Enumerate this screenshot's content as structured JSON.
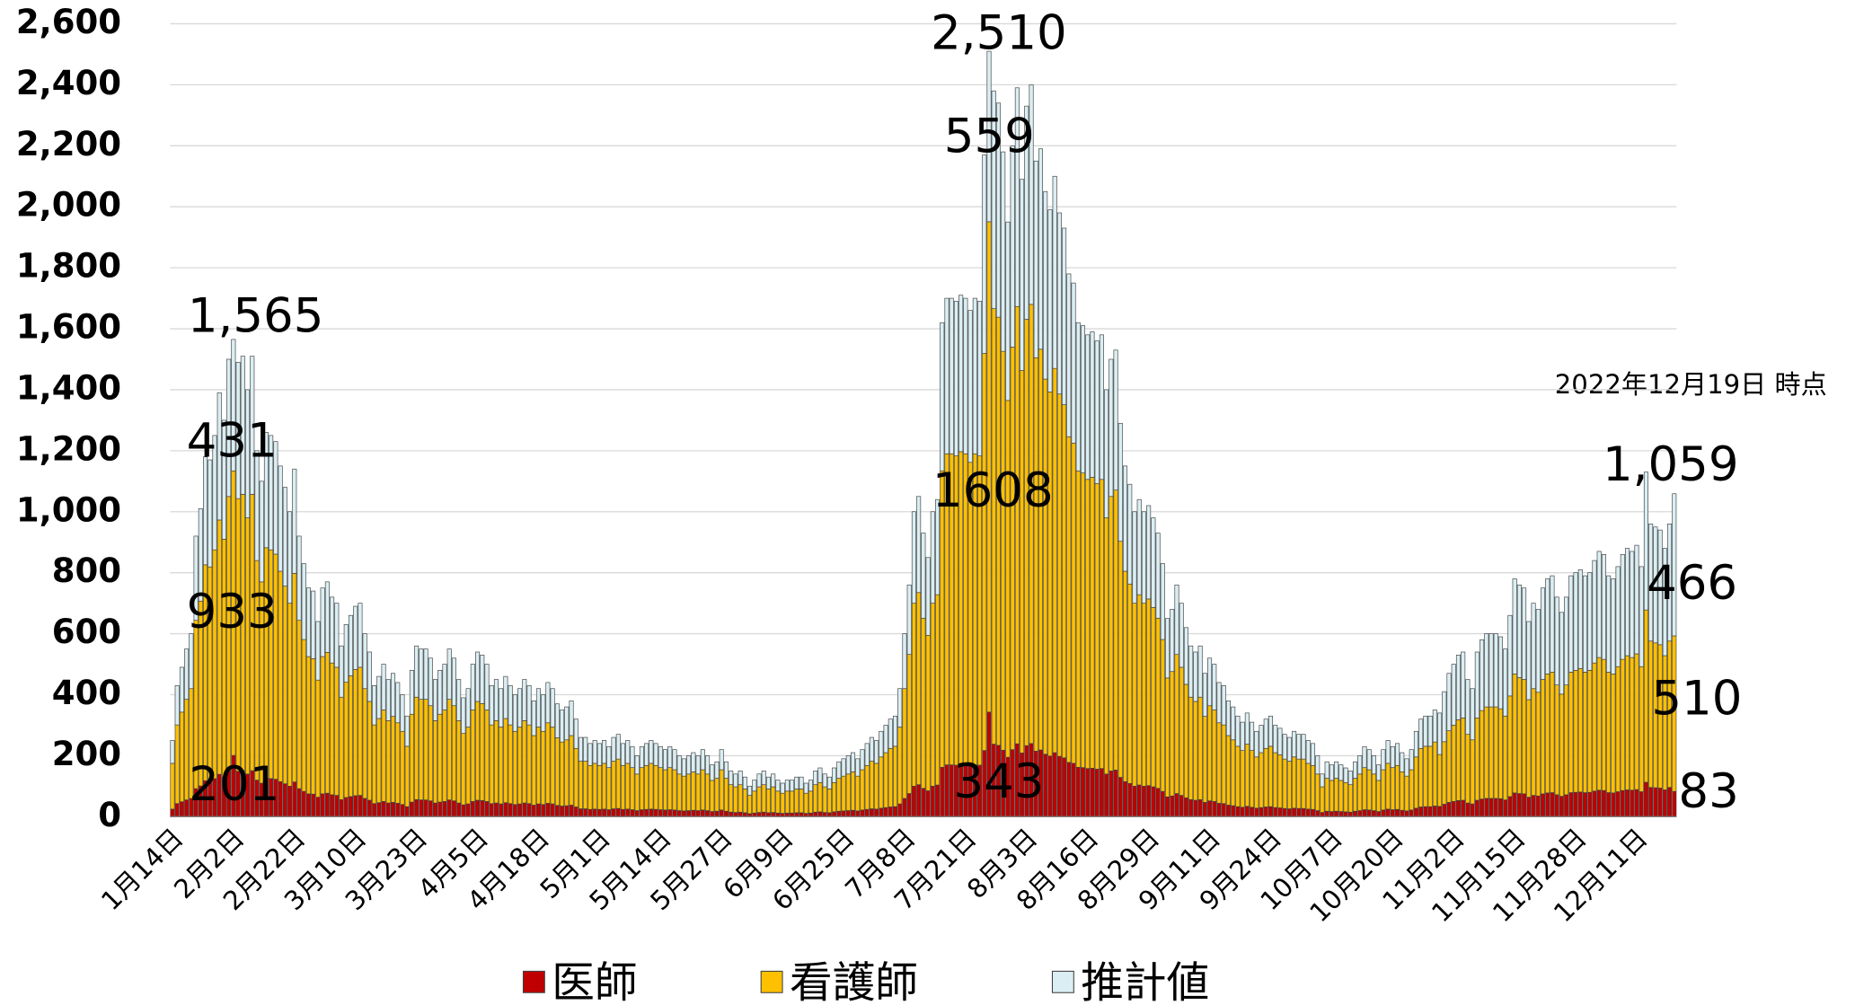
{
  "chart_data": {
    "type": "stacked_bar",
    "note": "2022年12月19日 時点",
    "categories": [
      "1月14日",
      null,
      null,
      null,
      null,
      null,
      null,
      null,
      null,
      null,
      null,
      null,
      null,
      "2月2日",
      null,
      null,
      null,
      null,
      null,
      null,
      null,
      null,
      null,
      null,
      null,
      null,
      "2月22日",
      null,
      null,
      null,
      null,
      null,
      null,
      null,
      null,
      null,
      null,
      null,
      null,
      "3月10日",
      null,
      null,
      null,
      null,
      null,
      null,
      null,
      null,
      null,
      null,
      null,
      null,
      "3月23日",
      null,
      null,
      null,
      null,
      null,
      null,
      null,
      null,
      null,
      null,
      null,
      null,
      "4月5日",
      null,
      null,
      null,
      null,
      null,
      null,
      null,
      null,
      null,
      null,
      null,
      null,
      "4月18日",
      null,
      null,
      null,
      null,
      null,
      null,
      null,
      null,
      null,
      null,
      null,
      null,
      "5月1日",
      null,
      null,
      null,
      null,
      null,
      null,
      null,
      null,
      null,
      null,
      null,
      null,
      "5月14日",
      null,
      null,
      null,
      null,
      null,
      null,
      null,
      null,
      null,
      null,
      null,
      null,
      "5月27日",
      null,
      null,
      null,
      null,
      null,
      null,
      null,
      null,
      null,
      null,
      null,
      null,
      "6月9日",
      null,
      null,
      null,
      null,
      null,
      null,
      null,
      null,
      null,
      null,
      null,
      null,
      "6月25日",
      null,
      null,
      null,
      null,
      null,
      null,
      null,
      null,
      null,
      null,
      null,
      null,
      "7月8日",
      null,
      null,
      null,
      null,
      null,
      null,
      null,
      null,
      null,
      null,
      null,
      null,
      "7月21日",
      null,
      null,
      null,
      null,
      null,
      null,
      null,
      null,
      null,
      null,
      null,
      null,
      "8月3日",
      null,
      null,
      null,
      null,
      null,
      null,
      null,
      null,
      null,
      null,
      null,
      null,
      "8月16日",
      null,
      null,
      null,
      null,
      null,
      null,
      null,
      null,
      null,
      null,
      null,
      null,
      "8月29日",
      null,
      null,
      null,
      null,
      null,
      null,
      null,
      null,
      null,
      null,
      null,
      null,
      "9月11日",
      null,
      null,
      null,
      null,
      null,
      null,
      null,
      null,
      null,
      null,
      null,
      null,
      "9月24日",
      null,
      null,
      null,
      null,
      null,
      null,
      null,
      null,
      null,
      null,
      null,
      null,
      "10月7日",
      null,
      null,
      null,
      null,
      null,
      null,
      null,
      null,
      null,
      null,
      null,
      null,
      "10月20日",
      null,
      null,
      null,
      null,
      null,
      null,
      null,
      null,
      null,
      null,
      null,
      null,
      "11月2日",
      null,
      null,
      null,
      null,
      null,
      null,
      null,
      null,
      null,
      null,
      null,
      null,
      "11月15日",
      null,
      null,
      null,
      null,
      null,
      null,
      null,
      null,
      null,
      null,
      null,
      null,
      "11月28日",
      null,
      null,
      null,
      null,
      null,
      null,
      null,
      null,
      null,
      null,
      null,
      null,
      "12月11日",
      null,
      null,
      null,
      null,
      null,
      null,
      null,
      null
    ],
    "series": [
      {
        "name": "医師",
        "color": "#c00000",
        "values": [
          25,
          43,
          49,
          55,
          60,
          92,
          101,
          118,
          117,
          125,
          139,
          130,
          150,
          201,
          149,
          151,
          140,
          151,
          120,
          110,
          126,
          125,
          123,
          115,
          108,
          100,
          114,
          92,
          83,
          75,
          74,
          64,
          75,
          77,
          72,
          70,
          56,
          63,
          66,
          69,
          70,
          60,
          54,
          43,
          46,
          50,
          45,
          47,
          44,
          40,
          33,
          48,
          56,
          55,
          55,
          52,
          45,
          48,
          50,
          55,
          52,
          45,
          39,
          42,
          50,
          54,
          53,
          50,
          43,
          45,
          42,
          46,
          43,
          40,
          42,
          45,
          43,
          38,
          42,
          40,
          44,
          42,
          37,
          35,
          36,
          38,
          32,
          26,
          26,
          24,
          25,
          24,
          25,
          23,
          26,
          27,
          24,
          25,
          23,
          20,
          23,
          24,
          25,
          24,
          23,
          22,
          23,
          22,
          20,
          19,
          20,
          21,
          20,
          22,
          20,
          17,
          18,
          22,
          18,
          15,
          14,
          15,
          13,
          10,
          12,
          14,
          15,
          13,
          14,
          12,
          11,
          12,
          12,
          13,
          13,
          11,
          12,
          15,
          16,
          14,
          13,
          16,
          18,
          19,
          20,
          21,
          19,
          22,
          24,
          26,
          25,
          28,
          30,
          32,
          33,
          42,
          60,
          76,
          100,
          105,
          93,
          85,
          100,
          104,
          162,
          170,
          170,
          169,
          171,
          170,
          166,
          170,
          169,
          217,
          343,
          238,
          234,
          218,
          195,
          220,
          239,
          209,
          233,
          240,
          215,
          219,
          205,
          199,
          210,
          198,
          193,
          178,
          175,
          162,
          161,
          158,
          159,
          156,
          158,
          140,
          150,
          153,
          129,
          115,
          109,
          100,
          104,
          100,
          102,
          98,
          93,
          83,
          65,
          68,
          76,
          70,
          62,
          56,
          54,
          56,
          47,
          52,
          50,
          44,
          43,
          38,
          36,
          33,
          31,
          34,
          31,
          28,
          30,
          32,
          33,
          30,
          29,
          27,
          26,
          28,
          27,
          27,
          25,
          24,
          20,
          14,
          18,
          17,
          18,
          17,
          16,
          15,
          18,
          20,
          23,
          22,
          20,
          17,
          22,
          25,
          23,
          24,
          21,
          19,
          22,
          28,
          32,
          33,
          33,
          35,
          34,
          41,
          47,
          50,
          53,
          54,
          45,
          42,
          54,
          58,
          60,
          60,
          60,
          59,
          55,
          66,
          78,
          76,
          75,
          64,
          70,
          68,
          75,
          78,
          79,
          72,
          67,
          72,
          79,
          80,
          81,
          79,
          80,
          84,
          87,
          86,
          79,
          78,
          82,
          86,
          88,
          87,
          89,
          82,
          113,
          96,
          95,
          94,
          88,
          96,
          83
        ]
      },
      {
        "name": "看護師",
        "color": "#ffc000",
        "values": [
          150,
          258,
          294,
          330,
          360,
          552,
          606,
          708,
          702,
          750,
          834,
          780,
          900,
          933,
          894,
          906,
          840,
          906,
          720,
          660,
          756,
          750,
          738,
          690,
          648,
          600,
          684,
          552,
          498,
          450,
          444,
          384,
          450,
          462,
          432,
          420,
          336,
          378,
          396,
          414,
          420,
          360,
          324,
          258,
          276,
          300,
          270,
          282,
          264,
          240,
          198,
          288,
          336,
          330,
          330,
          312,
          270,
          288,
          300,
          330,
          312,
          270,
          234,
          252,
          300,
          324,
          318,
          300,
          258,
          270,
          252,
          276,
          258,
          240,
          252,
          270,
          258,
          228,
          252,
          240,
          264,
          252,
          222,
          210,
          216,
          228,
          192,
          156,
          156,
          144,
          150,
          144,
          150,
          138,
          156,
          162,
          144,
          150,
          138,
          120,
          138,
          144,
          150,
          144,
          138,
          132,
          138,
          132,
          120,
          114,
          120,
          126,
          120,
          132,
          120,
          102,
          108,
          132,
          108,
          90,
          84,
          90,
          78,
          60,
          72,
          84,
          90,
          78,
          84,
          72,
          66,
          72,
          72,
          78,
          78,
          66,
          72,
          90,
          96,
          84,
          78,
          96,
          108,
          114,
          120,
          126,
          114,
          132,
          144,
          156,
          150,
          168,
          180,
          192,
          198,
          252,
          360,
          456,
          600,
          630,
          558,
          510,
          600,
          624,
          972,
          1020,
          1020,
          1014,
          1026,
          1020,
          996,
          1020,
          1014,
          1302,
          1608,
          1428,
          1404,
          1308,
          1170,
          1320,
          1434,
          1254,
          1398,
          1440,
          1290,
          1314,
          1230,
          1194,
          1260,
          1188,
          1158,
          1068,
          1050,
          972,
          966,
          948,
          954,
          936,
          948,
          840,
          900,
          918,
          774,
          690,
          654,
          600,
          624,
          600,
          612,
          588,
          558,
          498,
          390,
          408,
          456,
          420,
          372,
          336,
          324,
          336,
          282,
          312,
          300,
          264,
          258,
          228,
          216,
          198,
          186,
          204,
          186,
          168,
          180,
          192,
          198,
          180,
          174,
          162,
          156,
          168,
          162,
          162,
          150,
          144,
          120,
          84,
          108,
          102,
          108,
          102,
          96,
          90,
          108,
          120,
          138,
          132,
          120,
          102,
          132,
          150,
          138,
          144,
          126,
          114,
          132,
          168,
          192,
          198,
          198,
          210,
          170,
          205,
          235,
          250,
          265,
          270,
          225,
          210,
          270,
          290,
          300,
          300,
          300,
          295,
          275,
          330,
          390,
          380,
          375,
          320,
          350,
          340,
          375,
          390,
          395,
          360,
          335,
          360,
          395,
          400,
          405,
          395,
          400,
          420,
          435,
          430,
          395,
          390,
          410,
          430,
          440,
          435,
          445,
          410,
          565,
          480,
          475,
          470,
          440,
          480,
          510
        ]
      },
      {
        "name": "推計値",
        "color": "#daeef3",
        "values": [
          75,
          129,
          147,
          165,
          180,
          276,
          303,
          354,
          351,
          375,
          417,
          390,
          450,
          431,
          447,
          453,
          420,
          453,
          360,
          330,
          378,
          375,
          369,
          345,
          324,
          300,
          342,
          276,
          249,
          225,
          222,
          192,
          225,
          231,
          216,
          210,
          168,
          189,
          198,
          207,
          210,
          180,
          162,
          129,
          138,
          150,
          135,
          141,
          132,
          120,
          99,
          144,
          168,
          165,
          165,
          156,
          135,
          144,
          150,
          165,
          156,
          135,
          117,
          126,
          150,
          162,
          159,
          150,
          129,
          135,
          126,
          138,
          129,
          120,
          126,
          135,
          129,
          114,
          126,
          120,
          132,
          126,
          111,
          105,
          108,
          114,
          96,
          78,
          78,
          72,
          75,
          72,
          75,
          69,
          78,
          81,
          72,
          75,
          69,
          60,
          69,
          72,
          75,
          72,
          69,
          66,
          69,
          66,
          60,
          57,
          60,
          63,
          60,
          66,
          60,
          51,
          54,
          66,
          54,
          45,
          42,
          45,
          39,
          30,
          36,
          42,
          45,
          39,
          42,
          36,
          33,
          36,
          36,
          39,
          39,
          33,
          36,
          45,
          48,
          42,
          39,
          48,
          54,
          57,
          60,
          63,
          57,
          66,
          72,
          78,
          75,
          84,
          90,
          96,
          99,
          126,
          180,
          228,
          300,
          315,
          279,
          255,
          300,
          312,
          486,
          510,
          510,
          507,
          513,
          510,
          498,
          510,
          507,
          651,
          559,
          714,
          702,
          654,
          585,
          660,
          717,
          627,
          699,
          720,
          645,
          657,
          615,
          597,
          630,
          594,
          579,
          534,
          525,
          486,
          483,
          474,
          477,
          468,
          474,
          420,
          450,
          459,
          387,
          345,
          327,
          300,
          312,
          300,
          306,
          294,
          279,
          249,
          195,
          204,
          228,
          210,
          186,
          168,
          162,
          168,
          141,
          156,
          150,
          132,
          129,
          114,
          108,
          99,
          93,
          102,
          93,
          84,
          90,
          96,
          99,
          90,
          87,
          81,
          78,
          84,
          81,
          81,
          75,
          72,
          60,
          42,
          54,
          51,
          54,
          51,
          48,
          45,
          54,
          60,
          69,
          66,
          60,
          51,
          66,
          75,
          69,
          72,
          63,
          57,
          66,
          84,
          96,
          99,
          99,
          105,
          136,
          164,
          188,
          200,
          212,
          216,
          180,
          168,
          216,
          232,
          240,
          240,
          240,
          236,
          220,
          264,
          312,
          304,
          300,
          256,
          280,
          272,
          300,
          312,
          316,
          288,
          268,
          288,
          316,
          320,
          324,
          316,
          320,
          336,
          348,
          344,
          316,
          312,
          328,
          344,
          352,
          348,
          356,
          328,
          452,
          384,
          380,
          376,
          352,
          384,
          466
        ]
      }
    ],
    "total_labels": [
      {
        "value": 1565,
        "label": "1,565"
      },
      {
        "value": 2510,
        "label": "2,510"
      },
      {
        "value": 1059,
        "label": "1,059"
      }
    ],
    "ylim": [
      0,
      2600
    ],
    "yticks": [
      0,
      200,
      400,
      600,
      800,
      {
        "value": 1000,
        "label": "1,000"
      },
      {
        "value": 1200,
        "label": "1,200"
      },
      {
        "value": 1400,
        "label": "1,400"
      },
      {
        "value": 1600,
        "label": "1,600"
      },
      {
        "value": 1800,
        "label": "1,800"
      },
      {
        "value": 2000,
        "label": "2,000"
      },
      {
        "value": 2200,
        "label": "2,200"
      },
      {
        "value": 2400,
        "label": "2,400"
      },
      {
        "value": 2600,
        "label": "2,600"
      }
    ],
    "grid": true,
    "legend": "bottom"
  }
}
